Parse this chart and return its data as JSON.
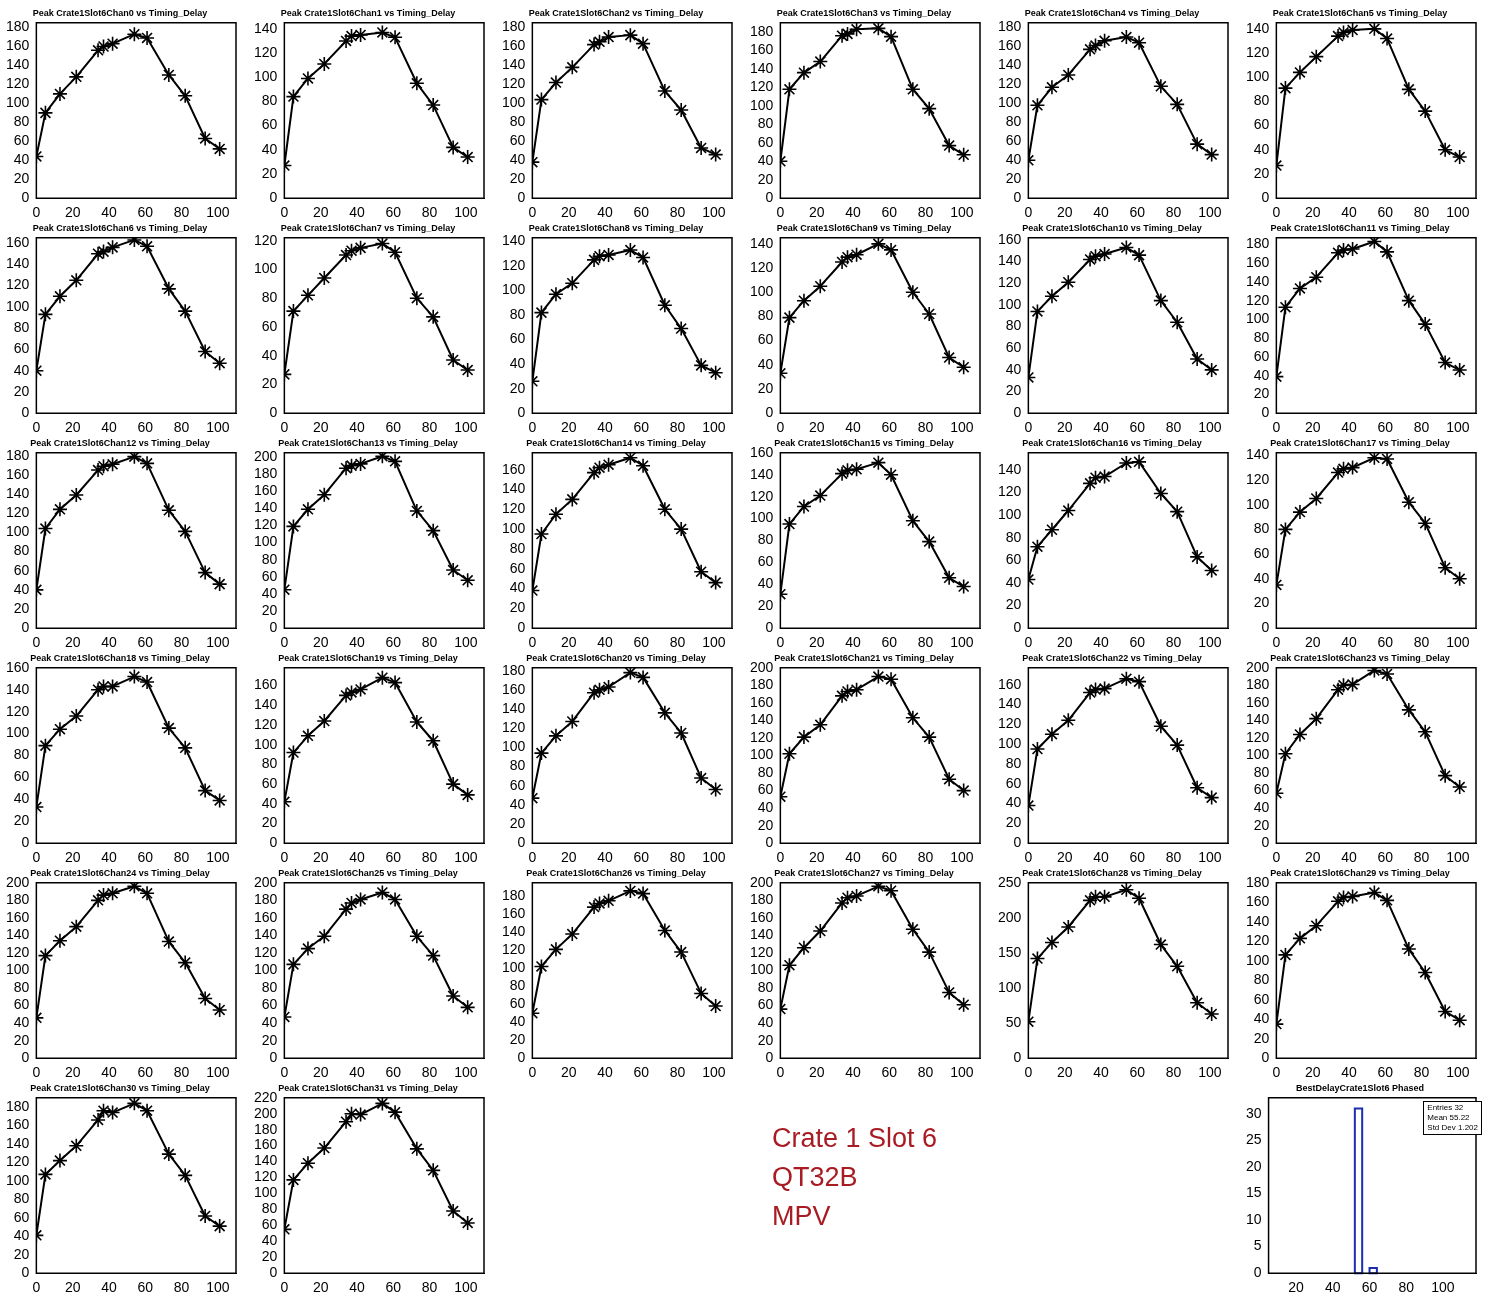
{
  "chart_data": [
    {
      "type": "line",
      "title": "Peak Crate1Slot6Chan0 vs Timing_Delay",
      "x": [
        0,
        5,
        13,
        22,
        34,
        37,
        42,
        54,
        61,
        73,
        82,
        93,
        101
      ],
      "values": [
        44,
        90,
        110,
        128,
        156,
        160,
        163,
        173,
        169,
        130,
        108,
        63,
        52
      ],
      "color": "#000000",
      "marker": "cross",
      "xlim": [
        0,
        110
      ],
      "xticks": [
        0,
        20,
        40,
        60,
        80,
        100
      ],
      "ylim": [
        0,
        185
      ],
      "yticks": [
        0,
        20,
        40,
        60,
        80,
        100,
        120,
        140,
        160,
        180
      ]
    },
    {
      "type": "line",
      "title": "Peak Crate1Slot6Chan1 vs Timing_Delay",
      "x": [
        0,
        5,
        13,
        22,
        34,
        37,
        42,
        54,
        61,
        73,
        82,
        93,
        101
      ],
      "values": [
        27,
        84,
        99,
        111,
        130,
        134,
        135,
        137,
        133,
        95,
        77,
        42,
        34
      ],
      "color": "#000000",
      "marker": "cross",
      "xlim": [
        0,
        110
      ],
      "xticks": [
        0,
        20,
        40,
        60,
        80,
        100
      ],
      "ylim": [
        0,
        145
      ],
      "yticks": [
        0,
        20,
        40,
        60,
        80,
        100,
        120,
        140
      ]
    },
    {
      "type": "line",
      "title": "Peak Crate1Slot6Chan2 vs Timing_Delay",
      "x": [
        0,
        5,
        13,
        22,
        34,
        37,
        42,
        54,
        61,
        73,
        82,
        93,
        101
      ],
      "values": [
        38,
        104,
        122,
        138,
        162,
        165,
        170,
        172,
        163,
        113,
        93,
        53,
        46
      ],
      "color": "#000000",
      "marker": "cross",
      "xlim": [
        0,
        110
      ],
      "xticks": [
        0,
        20,
        40,
        60,
        80,
        100
      ],
      "ylim": [
        0,
        185
      ],
      "yticks": [
        0,
        20,
        40,
        60,
        80,
        100,
        120,
        140,
        160,
        180
      ]
    },
    {
      "type": "line",
      "title": "Peak Crate1Slot6Chan3 vs Timing_Delay",
      "x": [
        0,
        5,
        13,
        22,
        34,
        37,
        42,
        54,
        61,
        73,
        82,
        93,
        101
      ],
      "values": [
        40,
        118,
        136,
        148,
        176,
        178,
        183,
        184,
        175,
        118,
        97,
        57,
        47
      ],
      "color": "#000000",
      "marker": "cross",
      "xlim": [
        0,
        110
      ],
      "xticks": [
        0,
        20,
        40,
        60,
        80,
        100
      ],
      "ylim": [
        0,
        190
      ],
      "yticks": [
        0,
        20,
        40,
        60,
        80,
        100,
        120,
        140,
        160,
        180
      ]
    },
    {
      "type": "line",
      "title": "Peak Crate1Slot6Chan4 vs Timing_Delay",
      "x": [
        0,
        5,
        13,
        22,
        34,
        37,
        42,
        54,
        61,
        73,
        82,
        93,
        101
      ],
      "values": [
        40,
        98,
        117,
        130,
        157,
        161,
        166,
        170,
        164,
        118,
        99,
        57,
        46
      ],
      "color": "#000000",
      "marker": "cross",
      "xlim": [
        0,
        110
      ],
      "xticks": [
        0,
        20,
        40,
        60,
        80,
        100
      ],
      "ylim": [
        0,
        185
      ],
      "yticks": [
        0,
        20,
        40,
        60,
        80,
        100,
        120,
        140,
        160,
        180
      ]
    },
    {
      "type": "line",
      "title": "Peak Crate1Slot6Chan5 vs Timing_Delay",
      "x": [
        0,
        5,
        13,
        22,
        34,
        37,
        42,
        54,
        61,
        73,
        82,
        93,
        101
      ],
      "values": [
        27,
        91,
        104,
        117,
        134,
        137,
        139,
        140,
        132,
        90,
        72,
        40,
        34
      ],
      "color": "#000000",
      "marker": "cross",
      "xlim": [
        0,
        110
      ],
      "xticks": [
        0,
        20,
        40,
        60,
        80,
        100
      ],
      "ylim": [
        0,
        145
      ],
      "yticks": [
        0,
        20,
        40,
        60,
        80,
        100,
        120,
        140
      ]
    },
    {
      "type": "line",
      "title": "Peak Crate1Slot6Chan6 vs Timing_Delay",
      "x": [
        0,
        5,
        13,
        22,
        34,
        37,
        42,
        54,
        61,
        73,
        82,
        93,
        101
      ],
      "values": [
        40,
        93,
        110,
        125,
        150,
        152,
        156,
        163,
        157,
        117,
        96,
        58,
        47
      ],
      "color": "#000000",
      "marker": "cross",
      "xlim": [
        0,
        110
      ],
      "xticks": [
        0,
        20,
        40,
        60,
        80,
        100
      ],
      "ylim": [
        0,
        165
      ],
      "yticks": [
        0,
        20,
        40,
        60,
        80,
        100,
        120,
        140,
        160
      ]
    },
    {
      "type": "line",
      "title": "Peak Crate1Slot6Chan7 vs Timing_Delay",
      "x": [
        0,
        5,
        13,
        22,
        34,
        37,
        42,
        54,
        61,
        73,
        82,
        93,
        101
      ],
      "values": [
        27,
        71,
        82,
        94,
        110,
        113,
        115,
        118,
        112,
        80,
        67,
        37,
        30
      ],
      "color": "#000000",
      "marker": "cross",
      "xlim": [
        0,
        110
      ],
      "xticks": [
        0,
        20,
        40,
        60,
        80,
        100
      ],
      "ylim": [
        0,
        122
      ],
      "yticks": [
        0,
        20,
        40,
        60,
        80,
        100,
        120
      ]
    },
    {
      "type": "line",
      "title": "Peak Crate1Slot6Chan8 vs Timing_Delay",
      "x": [
        0,
        5,
        13,
        22,
        34,
        37,
        42,
        54,
        61,
        73,
        82,
        93,
        101
      ],
      "values": [
        26,
        82,
        97,
        106,
        125,
        128,
        129,
        133,
        127,
        88,
        69,
        39,
        33
      ],
      "color": "#000000",
      "marker": "cross",
      "xlim": [
        0,
        110
      ],
      "xticks": [
        0,
        20,
        40,
        60,
        80,
        100
      ],
      "ylim": [
        0,
        143
      ],
      "yticks": [
        0,
        20,
        40,
        60,
        80,
        100,
        120,
        140
      ]
    },
    {
      "type": "line",
      "title": "Peak Crate1Slot6Chan9 vs Timing_Delay",
      "x": [
        0,
        5,
        13,
        22,
        34,
        37,
        42,
        54,
        61,
        73,
        82,
        93,
        101
      ],
      "values": [
        33,
        79,
        93,
        105,
        125,
        129,
        131,
        140,
        135,
        100,
        82,
        46,
        38
      ],
      "color": "#000000",
      "marker": "cross",
      "xlim": [
        0,
        110
      ],
      "xticks": [
        0,
        20,
        40,
        60,
        80,
        100
      ],
      "ylim": [
        0,
        145
      ],
      "yticks": [
        0,
        20,
        40,
        60,
        80,
        100,
        120,
        140
      ]
    },
    {
      "type": "line",
      "title": "Peak Crate1Slot6Chan10 vs Timing_Delay",
      "x": [
        0,
        5,
        13,
        22,
        34,
        37,
        42,
        54,
        61,
        73,
        82,
        93,
        101
      ],
      "values": [
        33,
        94,
        108,
        121,
        142,
        145,
        147,
        153,
        146,
        104,
        84,
        50,
        40
      ],
      "color": "#000000",
      "marker": "cross",
      "xlim": [
        0,
        110
      ],
      "xticks": [
        0,
        20,
        40,
        60,
        80,
        100
      ],
      "ylim": [
        0,
        162
      ],
      "yticks": [
        0,
        20,
        40,
        60,
        80,
        100,
        120,
        140,
        160
      ]
    },
    {
      "type": "line",
      "title": "Peak Crate1Slot6Chan11 vs Timing_Delay",
      "x": [
        0,
        5,
        13,
        22,
        34,
        37,
        42,
        54,
        61,
        73,
        82,
        93,
        101
      ],
      "values": [
        39,
        113,
        133,
        145,
        171,
        174,
        175,
        183,
        172,
        120,
        95,
        54,
        46
      ],
      "color": "#000000",
      "marker": "cross",
      "xlim": [
        0,
        110
      ],
      "xticks": [
        0,
        20,
        40,
        60,
        80,
        100
      ],
      "ylim": [
        0,
        187
      ],
      "yticks": [
        0,
        20,
        40,
        60,
        80,
        100,
        120,
        140,
        160,
        180
      ]
    },
    {
      "type": "line",
      "title": "Peak Crate1Slot6Chan12 vs Timing_Delay",
      "x": [
        0,
        5,
        13,
        22,
        34,
        37,
        42,
        54,
        61,
        73,
        82,
        93,
        101
      ],
      "values": [
        40,
        104,
        124,
        139,
        165,
        169,
        171,
        179,
        172,
        123,
        101,
        58,
        46
      ],
      "color": "#000000",
      "marker": "cross",
      "xlim": [
        0,
        110
      ],
      "xticks": [
        0,
        20,
        40,
        60,
        80,
        100
      ],
      "ylim": [
        0,
        183
      ],
      "yticks": [
        0,
        20,
        40,
        60,
        80,
        100,
        120,
        140,
        160,
        180
      ]
    },
    {
      "type": "line",
      "title": "Peak Crate1Slot6Chan13 vs Timing_Delay",
      "x": [
        0,
        5,
        13,
        22,
        34,
        37,
        42,
        54,
        61,
        73,
        82,
        93,
        101
      ],
      "values": [
        45,
        119,
        139,
        156,
        187,
        190,
        192,
        201,
        195,
        137,
        114,
        68,
        56
      ],
      "color": "#000000",
      "marker": "cross",
      "xlim": [
        0,
        110
      ],
      "xticks": [
        0,
        20,
        40,
        60,
        80,
        100
      ],
      "ylim": [
        0,
        205
      ],
      "yticks": [
        0,
        20,
        40,
        60,
        80,
        100,
        120,
        140,
        160,
        180,
        200
      ]
    },
    {
      "type": "line",
      "title": "Peak Crate1Slot6Chan14 vs Timing_Delay",
      "x": [
        0,
        5,
        13,
        22,
        34,
        37,
        42,
        54,
        61,
        73,
        82,
        93,
        101
      ],
      "values": [
        38,
        95,
        115,
        130,
        157,
        162,
        165,
        172,
        164,
        120,
        100,
        57,
        46
      ],
      "color": "#000000",
      "marker": "cross",
      "xlim": [
        0,
        110
      ],
      "xticks": [
        0,
        20,
        40,
        60,
        80,
        100
      ],
      "ylim": [
        0,
        177
      ],
      "yticks": [
        0,
        20,
        40,
        60,
        80,
        100,
        120,
        140,
        160
      ]
    },
    {
      "type": "line",
      "title": "Peak Crate1Slot6Chan15 vs Timing_Delay",
      "x": [
        0,
        5,
        13,
        22,
        34,
        37,
        42,
        54,
        61,
        73,
        82,
        93,
        101
      ],
      "values": [
        31,
        95,
        111,
        121,
        141,
        144,
        145,
        151,
        140,
        98,
        79,
        46,
        38
      ],
      "color": "#000000",
      "marker": "cross",
      "xlim": [
        0,
        110
      ],
      "xticks": [
        0,
        20,
        40,
        60,
        80,
        100
      ],
      "ylim": [
        0,
        160
      ],
      "yticks": [
        0,
        20,
        40,
        60,
        80,
        100,
        120,
        140,
        160
      ]
    },
    {
      "type": "line",
      "title": "Peak Crate1Slot6Chan16 vs Timing_Delay",
      "x": [
        0,
        5,
        13,
        22,
        34,
        37,
        42,
        54,
        61,
        73,
        82,
        93,
        101
      ],
      "values": [
        43,
        72,
        87,
        104,
        128,
        133,
        134,
        146,
        147,
        119,
        103,
        63,
        51
      ],
      "color": "#000000",
      "marker": "cross",
      "xlim": [
        0,
        110
      ],
      "xticks": [
        0,
        20,
        40,
        60,
        80,
        100
      ],
      "ylim": [
        0,
        155
      ],
      "yticks": [
        0,
        20,
        40,
        60,
        80,
        100,
        120,
        140
      ]
    },
    {
      "type": "line",
      "title": "Peak Crate1Slot6Chan17 vs Timing_Delay",
      "x": [
        0,
        5,
        13,
        22,
        34,
        37,
        42,
        54,
        61,
        73,
        82,
        93,
        101
      ],
      "values": [
        35,
        80,
        94,
        105,
        126,
        129,
        130,
        138,
        137,
        102,
        85,
        49,
        40
      ],
      "color": "#000000",
      "marker": "cross",
      "xlim": [
        0,
        110
      ],
      "xticks": [
        0,
        20,
        40,
        60,
        80,
        100
      ],
      "ylim": [
        0,
        142
      ],
      "yticks": [
        0,
        20,
        40,
        60,
        80,
        100,
        120,
        140
      ]
    },
    {
      "type": "line",
      "title": "Peak Crate1Slot6Chan18 vs Timing_Delay",
      "x": [
        0,
        5,
        13,
        22,
        34,
        37,
        42,
        54,
        61,
        73,
        82,
        93,
        101
      ],
      "values": [
        33,
        89,
        104,
        116,
        140,
        143,
        143,
        152,
        147,
        105,
        87,
        48,
        39
      ],
      "color": "#000000",
      "marker": "cross",
      "xlim": [
        0,
        110
      ],
      "xticks": [
        0,
        20,
        40,
        60,
        80,
        100
      ],
      "ylim": [
        0,
        160
      ],
      "yticks": [
        0,
        20,
        40,
        60,
        80,
        100,
        120,
        140,
        160
      ]
    },
    {
      "type": "line",
      "title": "Peak Crate1Slot6Chan19 vs Timing_Delay",
      "x": [
        0,
        5,
        13,
        22,
        34,
        37,
        42,
        54,
        61,
        73,
        82,
        93,
        101
      ],
      "values": [
        42,
        92,
        109,
        124,
        150,
        153,
        156,
        168,
        163,
        123,
        104,
        60,
        49
      ],
      "color": "#000000",
      "marker": "cross",
      "xlim": [
        0,
        110
      ],
      "xticks": [
        0,
        20,
        40,
        60,
        80,
        100
      ],
      "ylim": [
        0,
        178
      ],
      "yticks": [
        0,
        20,
        40,
        60,
        80,
        100,
        120,
        140,
        160
      ]
    },
    {
      "type": "line",
      "title": "Peak Crate1Slot6Chan20 vs Timing_Delay",
      "x": [
        0,
        5,
        13,
        22,
        34,
        37,
        42,
        54,
        61,
        73,
        82,
        93,
        101
      ],
      "values": [
        47,
        94,
        112,
        127,
        157,
        160,
        163,
        178,
        173,
        136,
        115,
        68,
        56
      ],
      "color": "#000000",
      "marker": "cross",
      "xlim": [
        0,
        110
      ],
      "xticks": [
        0,
        20,
        40,
        60,
        80,
        100
      ],
      "ylim": [
        0,
        183
      ],
      "yticks": [
        0,
        20,
        40,
        60,
        80,
        100,
        120,
        140,
        160,
        180
      ]
    },
    {
      "type": "line",
      "title": "Peak Crate1Slot6Chan21 vs Timing_Delay",
      "x": [
        0,
        5,
        13,
        22,
        34,
        37,
        42,
        54,
        61,
        73,
        82,
        93,
        101
      ],
      "values": [
        53,
        102,
        121,
        135,
        168,
        173,
        175,
        190,
        187,
        143,
        121,
        73,
        60
      ],
      "color": "#000000",
      "marker": "cross",
      "xlim": [
        0,
        110
      ],
      "xticks": [
        0,
        20,
        40,
        60,
        80,
        100
      ],
      "ylim": [
        0,
        200
      ],
      "yticks": [
        0,
        20,
        40,
        60,
        80,
        100,
        120,
        140,
        160,
        180,
        200
      ]
    },
    {
      "type": "line",
      "title": "Peak Crate1Slot6Chan22 vs Timing_Delay",
      "x": [
        0,
        5,
        13,
        22,
        34,
        37,
        42,
        54,
        61,
        73,
        82,
        93,
        101
      ],
      "values": [
        38,
        95,
        110,
        124,
        152,
        155,
        156,
        166,
        163,
        118,
        99,
        56,
        46
      ],
      "color": "#000000",
      "marker": "cross",
      "xlim": [
        0,
        110
      ],
      "xticks": [
        0,
        20,
        40,
        60,
        80,
        100
      ],
      "ylim": [
        0,
        177
      ],
      "yticks": [
        0,
        20,
        40,
        60,
        80,
        100,
        120,
        140,
        160
      ]
    },
    {
      "type": "line",
      "title": "Peak Crate1Slot6Chan23 vs Timing_Delay",
      "x": [
        0,
        5,
        13,
        22,
        34,
        37,
        42,
        54,
        61,
        73,
        82,
        93,
        101
      ],
      "values": [
        57,
        102,
        124,
        142,
        175,
        180,
        181,
        197,
        193,
        152,
        127,
        77,
        64
      ],
      "color": "#000000",
      "marker": "cross",
      "xlim": [
        0,
        110
      ],
      "xticks": [
        0,
        20,
        40,
        60,
        80,
        100
      ],
      "ylim": [
        0,
        200
      ],
      "yticks": [
        0,
        20,
        40,
        60,
        80,
        100,
        120,
        140,
        160,
        180,
        200
      ]
    },
    {
      "type": "line",
      "title": "Peak Crate1Slot6Chan24 vs Timing_Delay",
      "x": [
        0,
        5,
        13,
        22,
        34,
        37,
        42,
        54,
        61,
        73,
        82,
        93,
        101
      ],
      "values": [
        46,
        117,
        134,
        150,
        180,
        186,
        188,
        196,
        188,
        133,
        109,
        68,
        55
      ],
      "color": "#000000",
      "marker": "cross",
      "xlim": [
        0,
        110
      ],
      "xticks": [
        0,
        20,
        40,
        60,
        80,
        100
      ],
      "ylim": [
        0,
        200
      ],
      "yticks": [
        0,
        20,
        40,
        60,
        80,
        100,
        120,
        140,
        160,
        180,
        200
      ]
    },
    {
      "type": "line",
      "title": "Peak Crate1Slot6Chan25 vs Timing_Delay",
      "x": [
        0,
        5,
        13,
        22,
        34,
        37,
        42,
        54,
        61,
        73,
        82,
        93,
        101
      ],
      "values": [
        47,
        107,
        125,
        139,
        170,
        177,
        181,
        189,
        181,
        139,
        117,
        71,
        58
      ],
      "color": "#000000",
      "marker": "cross",
      "xlim": [
        0,
        110
      ],
      "xticks": [
        0,
        20,
        40,
        60,
        80,
        100
      ],
      "ylim": [
        0,
        200
      ],
      "yticks": [
        0,
        20,
        40,
        60,
        80,
        100,
        120,
        140,
        160,
        180,
        200
      ]
    },
    {
      "type": "line",
      "title": "Peak Crate1Slot6Chan26 vs Timing_Delay",
      "x": [
        0,
        5,
        13,
        22,
        34,
        37,
        42,
        54,
        61,
        73,
        82,
        93,
        101
      ],
      "values": [
        50,
        102,
        121,
        138,
        168,
        172,
        175,
        186,
        183,
        142,
        118,
        72,
        58
      ],
      "color": "#000000",
      "marker": "cross",
      "xlim": [
        0,
        110
      ],
      "xticks": [
        0,
        20,
        40,
        60,
        80,
        100
      ],
      "ylim": [
        0,
        195
      ],
      "yticks": [
        0,
        20,
        40,
        60,
        80,
        100,
        120,
        140,
        160,
        180
      ]
    },
    {
      "type": "line",
      "title": "Peak Crate1Slot6Chan27 vs Timing_Delay",
      "x": [
        0,
        5,
        13,
        22,
        34,
        37,
        42,
        54,
        61,
        73,
        82,
        93,
        101
      ],
      "values": [
        56,
        106,
        126,
        145,
        177,
        183,
        185,
        196,
        191,
        147,
        121,
        75,
        61
      ],
      "color": "#000000",
      "marker": "cross",
      "xlim": [
        0,
        110
      ],
      "xticks": [
        0,
        20,
        40,
        60,
        80,
        100
      ],
      "ylim": [
        0,
        200
      ],
      "yticks": [
        0,
        20,
        40,
        60,
        80,
        100,
        120,
        140,
        160,
        180,
        200
      ]
    },
    {
      "type": "line",
      "title": "Peak Crate1Slot6Chan28 vs Timing_Delay",
      "x": [
        0,
        5,
        13,
        22,
        34,
        37,
        42,
        54,
        61,
        73,
        82,
        93,
        101
      ],
      "values": [
        52,
        142,
        165,
        187,
        225,
        230,
        230,
        240,
        228,
        162,
        131,
        79,
        63
      ],
      "color": "#000000",
      "marker": "cross",
      "xlim": [
        0,
        110
      ],
      "xticks": [
        0,
        20,
        40,
        60,
        80,
        100
      ],
      "ylim": [
        0,
        250
      ],
      "yticks": [
        0,
        50,
        100,
        150,
        200,
        250
      ]
    },
    {
      "type": "line",
      "title": "Peak Crate1Slot6Chan29 vs Timing_Delay",
      "x": [
        0,
        5,
        13,
        22,
        34,
        37,
        42,
        54,
        61,
        73,
        82,
        93,
        101
      ],
      "values": [
        35,
        106,
        123,
        136,
        161,
        165,
        166,
        170,
        162,
        112,
        88,
        48,
        39
      ],
      "color": "#000000",
      "marker": "cross",
      "xlim": [
        0,
        110
      ],
      "xticks": [
        0,
        20,
        40,
        60,
        80,
        100
      ],
      "ylim": [
        0,
        180
      ],
      "yticks": [
        0,
        20,
        40,
        60,
        80,
        100,
        120,
        140,
        160,
        180
      ]
    },
    {
      "type": "line",
      "title": "Peak Crate1Slot6Chan30 vs Timing_Delay",
      "x": [
        0,
        5,
        13,
        22,
        34,
        37,
        42,
        54,
        61,
        73,
        82,
        93,
        101
      ],
      "values": [
        41,
        107,
        122,
        138,
        166,
        176,
        174,
        184,
        176,
        129,
        106,
        62,
        51
      ],
      "color": "#000000",
      "marker": "cross",
      "xlim": [
        0,
        110
      ],
      "xticks": [
        0,
        20,
        40,
        60,
        80,
        100
      ],
      "ylim": [
        0,
        190
      ],
      "yticks": [
        0,
        20,
        40,
        60,
        80,
        100,
        120,
        140,
        160,
        180
      ]
    },
    {
      "type": "line",
      "title": "Peak Crate1Slot6Chan31 vs Timing_Delay",
      "x": [
        0,
        5,
        13,
        22,
        34,
        37,
        42,
        54,
        61,
        73,
        82,
        93,
        101
      ],
      "values": [
        55,
        117,
        138,
        157,
        190,
        200,
        199,
        213,
        202,
        156,
        129,
        78,
        63
      ],
      "color": "#000000",
      "marker": "cross",
      "xlim": [
        0,
        110
      ],
      "xticks": [
        0,
        20,
        40,
        60,
        80,
        100
      ],
      "ylim": [
        0,
        220
      ],
      "yticks": [
        0,
        20,
        40,
        60,
        80,
        100,
        120,
        140,
        160,
        180,
        200,
        220
      ]
    },
    {
      "type": "other",
      "annotations": [
        "Crate 1 Slot 6",
        "QT32B",
        "MPV"
      ]
    },
    {
      "type": "histogram",
      "title": "BestDelayCrate1Slot6 Phased",
      "bins": [
        52,
        56,
        60,
        64
      ],
      "values": [
        31,
        0,
        1
      ],
      "color": "#1a2fb0",
      "xlim": [
        5,
        118
      ],
      "xticks": [
        20,
        40,
        60,
        80,
        100
      ],
      "ylim": [
        0,
        33
      ],
      "yticks": [
        0,
        5,
        10,
        15,
        20,
        25,
        30
      ],
      "annotations": [
        "Entries 32",
        "Mean 55.22",
        "Std Dev 1.202"
      ]
    }
  ]
}
